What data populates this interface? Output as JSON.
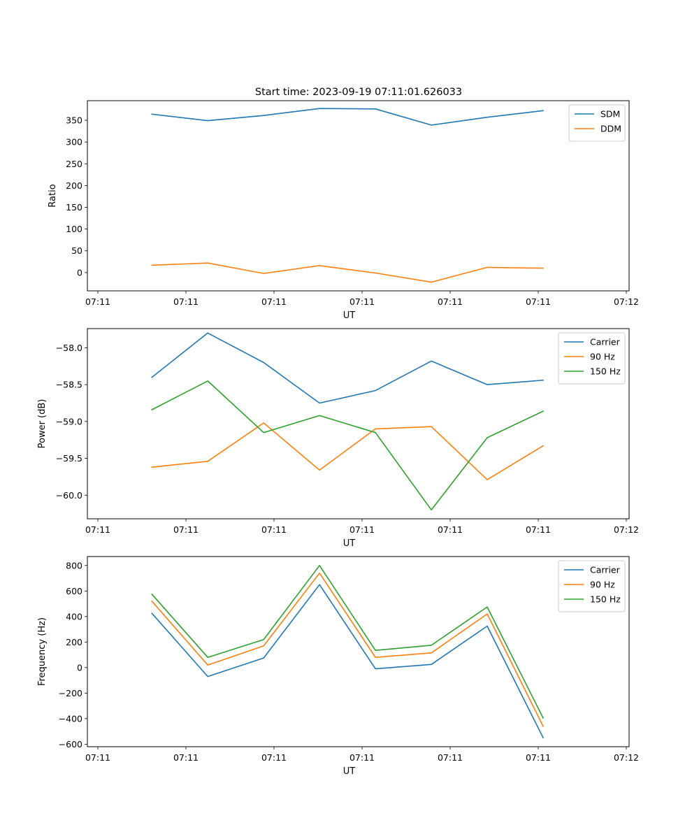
{
  "figure_title": "Start time: 2023-09-19 07:11:01.626033",
  "colors": {
    "blue": "#1f77b4",
    "orange": "#ff7f0e",
    "green": "#2ca02c"
  },
  "chart_data": [
    {
      "type": "line",
      "id": "ratio",
      "title": "Start time: 2023-09-19 07:11:01.626033",
      "xlabel": "UT",
      "ylabel": "Ratio",
      "x_ticks": [
        "07:11",
        "07:11",
        "07:11",
        "07:11",
        "07:11",
        "07:11",
        "07:12"
      ],
      "xlim": [
        -0.5,
        12.1
      ],
      "x": [
        1,
        2.3,
        3.6,
        4.9,
        6.2,
        7.5,
        8.8,
        10.1
      ],
      "ylim": [
        -42,
        395
      ],
      "y_ticks": [
        0,
        50,
        100,
        150,
        200,
        250,
        300,
        350
      ],
      "legend_position": "top-right",
      "series": [
        {
          "name": "SDM",
          "color": "#1f77b4",
          "values": [
            364,
            349,
            361,
            377,
            376,
            339,
            357,
            372
          ]
        },
        {
          "name": "DDM",
          "color": "#ff7f0e",
          "values": [
            17,
            22,
            -2,
            16,
            -1,
            -22,
            12,
            10
          ]
        }
      ]
    },
    {
      "type": "line",
      "id": "power",
      "title": "",
      "xlabel": "UT",
      "ylabel": "Power (dB)",
      "x_ticks": [
        "07:11",
        "07:11",
        "07:11",
        "07:11",
        "07:11",
        "07:11",
        "07:12"
      ],
      "xlim": [
        -0.5,
        12.1
      ],
      "x": [
        1,
        2.3,
        3.6,
        4.9,
        6.2,
        7.5,
        8.8,
        10.1
      ],
      "ylim": [
        -60.32,
        -57.74
      ],
      "y_ticks": [
        -60.0,
        -59.5,
        -59.0,
        -58.5,
        -58.0
      ],
      "y_tick_labels": [
        "−60.0",
        "−59.5",
        "−59.0",
        "−58.5",
        "−58.0"
      ],
      "legend_position": "top-right",
      "series": [
        {
          "name": "Carrier",
          "color": "#1f77b4",
          "values": [
            -58.4,
            -57.8,
            -58.2,
            -58.75,
            -58.58,
            -58.18,
            -58.5,
            -58.44
          ]
        },
        {
          "name": "90 Hz",
          "color": "#ff7f0e",
          "values": [
            -59.62,
            -59.54,
            -59.02,
            -59.66,
            -59.1,
            -59.07,
            -59.79,
            -59.33
          ]
        },
        {
          "name": "150 Hz",
          "color": "#2ca02c",
          "values": [
            -58.84,
            -58.45,
            -59.15,
            -58.92,
            -59.15,
            -60.2,
            -59.22,
            -58.86
          ]
        }
      ]
    },
    {
      "type": "line",
      "id": "frequency",
      "title": "",
      "xlabel": "UT",
      "ylabel": "Frequency (Hz)",
      "x_ticks": [
        "07:11",
        "07:11",
        "07:11",
        "07:11",
        "07:11",
        "07:11",
        "07:12"
      ],
      "xlim": [
        -0.5,
        12.1
      ],
      "x": [
        1,
        2.3,
        3.6,
        4.9,
        6.2,
        7.5,
        8.8,
        10.1
      ],
      "ylim": [
        -620,
        870
      ],
      "y_ticks": [
        -600,
        -400,
        -200,
        0,
        200,
        400,
        600,
        800
      ],
      "y_tick_labels": [
        "−600",
        "−400",
        "−200",
        "0",
        "200",
        "400",
        "600",
        "800"
      ],
      "legend_position": "top-right",
      "series": [
        {
          "name": "Carrier",
          "color": "#1f77b4",
          "values": [
            425,
            -70,
            75,
            650,
            -10,
            25,
            325,
            -550
          ]
        },
        {
          "name": "90 Hz",
          "color": "#ff7f0e",
          "values": [
            520,
            20,
            170,
            740,
            80,
            115,
            420,
            -460
          ]
        },
        {
          "name": "150 Hz",
          "color": "#2ca02c",
          "values": [
            575,
            80,
            220,
            800,
            135,
            175,
            475,
            -395
          ]
        }
      ]
    }
  ]
}
